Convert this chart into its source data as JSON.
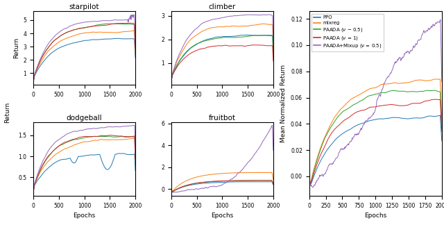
{
  "colors": {
    "ppo": "#1f77b4",
    "mixreg": "#ff7f0e",
    "paada_05": "#2ca02c",
    "paada_1": "#d62728",
    "paada_mixup": "#9467bd"
  },
  "legend_labels_display": [
    "PPO",
    "mixreg",
    "PAADA (ν ‒ 0.5)",
    "PAADA (ν = 1)",
    "PAADA+Mixup (ν = 0.5)"
  ],
  "subplot_titles": [
    "starpilot",
    "climber",
    "dodgeball",
    "fruitbot"
  ],
  "xlabel": "Epochs",
  "ylabel_left": "Return",
  "ylabel_right": "Mean Normalized Return",
  "n_points": 400,
  "x_max": 2000
}
